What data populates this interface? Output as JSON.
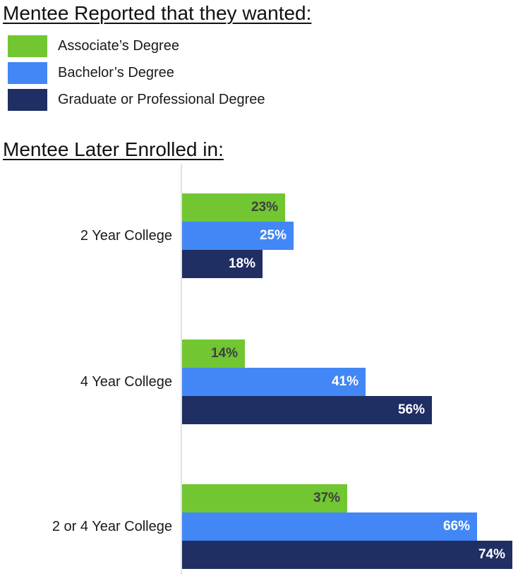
{
  "headings": {
    "wanted": "Mentee Reported that they wanted:",
    "enrolled": "Mentee Later Enrolled in:"
  },
  "legend": {
    "items": [
      {
        "label": "Associate’s Degree",
        "color": "#71C631"
      },
      {
        "label": "Bachelor’s Degree",
        "color": "#4287F5"
      },
      {
        "label": "Graduate or Professional Degree",
        "color": "#1F2E63"
      }
    ]
  },
  "chart_data": {
    "type": "bar",
    "orientation": "horizontal",
    "title": "Mentee Later Enrolled in:",
    "subtitle": "Mentee Reported that they wanted:",
    "categories": [
      "2 Year College",
      "4 Year College",
      "2 or 4 Year College"
    ],
    "series": [
      {
        "name": "Associate’s Degree",
        "color": "#71C631",
        "value_label_color": "#3F3F3F",
        "values": [
          23,
          14,
          37
        ]
      },
      {
        "name": "Bachelor’s Degree",
        "color": "#4287F5",
        "value_label_color": "#FFFFFF",
        "values": [
          25,
          41,
          66
        ]
      },
      {
        "name": "Graduate or Professional Degree",
        "color": "#1F2E63",
        "value_label_color": "#FFFFFF",
        "values": [
          18,
          56,
          74
        ]
      }
    ],
    "value_suffix": "%",
    "data_labels": true,
    "data_label_position": "inside-end",
    "xlim": [
      0,
      75
    ],
    "grid": false,
    "axis_line_color": "#E2E2E2",
    "legend_position": "top-left-above-chart"
  }
}
